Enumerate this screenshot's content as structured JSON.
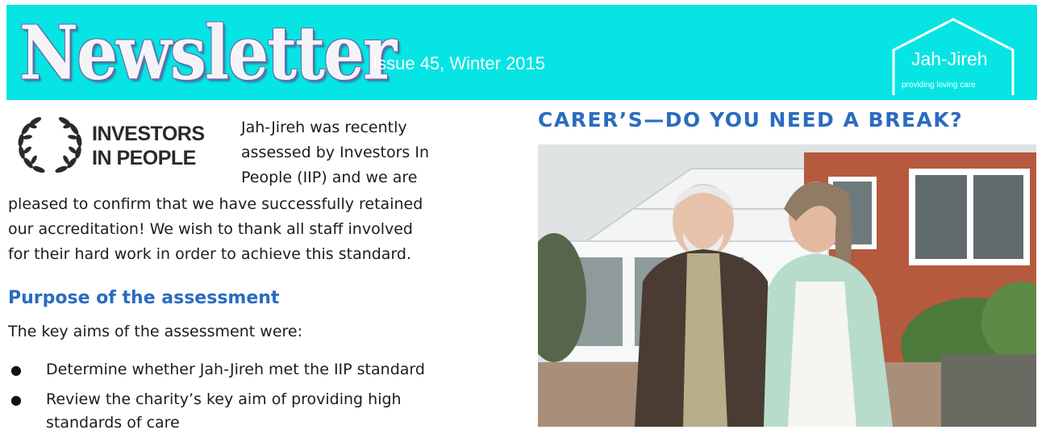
{
  "banner": {
    "title": "Newsletter",
    "issue": "Issue 45, Winter 2015",
    "logo_name": "Jah-Jireh",
    "logo_tagline": "providing loving care",
    "logo_icon": "house-outline-icon",
    "background_color": "#07e4e4"
  },
  "left": {
    "iip_logo_line1": "INVESTORS",
    "iip_logo_line2": "IN PEOPLE",
    "iip_logo_icon": "laurel-wreath-icon",
    "intro_lines": [
      "Jah-Jireh was recently",
      "assessed by Investors In",
      "People (IIP) and we are"
    ],
    "paragraph_lines": [
      "pleased to confirm that we have successfully retained",
      "our accreditation!  We wish to thank all staff involved",
      "for their hard work in order to achieve this standard."
    ],
    "section_heading": "Purpose of the assessment",
    "aims_intro": "The key aims of the assessment were:",
    "bullets": [
      "Determine whether Jah-Jireh met the IIP standard",
      "Review the charity’s key aim of providing high",
      "standards of care"
    ]
  },
  "right": {
    "heading": "CARER’S—DO YOU NEED A BREAK?",
    "photo_icon": "elderly-couple-photo"
  },
  "colors": {
    "heading_blue": "#2a6cc0",
    "text": "#1c1c1c"
  }
}
